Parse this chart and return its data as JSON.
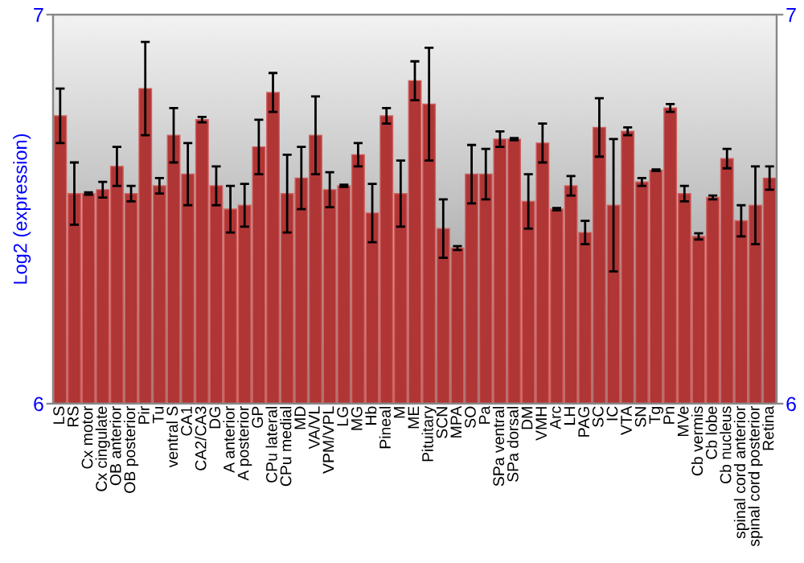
{
  "chart_data": {
    "type": "bar",
    "ylabel": "Log2 (expression)",
    "categories": [
      "LS",
      "RS",
      "Cx motor",
      "Cx cingulate",
      "OB anterior",
      "OB posterior",
      "Pir",
      "Tu",
      "ventral S",
      "CA1",
      "CA2/CA3",
      "DG",
      "A anterior",
      "A posterior",
      "GP",
      "CPu lateral",
      "CPu medial",
      "MD",
      "VA/VL",
      "VPM/VPL",
      "LG",
      "MG",
      "Hb",
      "Pineal",
      "M",
      "ME",
      "Pituitary",
      "SCN",
      "MPA",
      "SO",
      "Pa",
      "SPa ventral",
      "SPa dorsal",
      "DM",
      "VMH",
      "Arc",
      "LH",
      "PAG",
      "SC",
      "IC",
      "VTA",
      "SN",
      "Tg",
      "Pn",
      "MVe",
      "Cb vermis",
      "Cb lobe",
      "Cb nucleus",
      "spinal cord anterior",
      "spinal cord posterior",
      "Retina"
    ],
    "values": [
      6.74,
      6.54,
      6.54,
      6.55,
      6.61,
      6.54,
      6.81,
      6.56,
      6.69,
      6.59,
      6.73,
      6.56,
      6.5,
      6.51,
      6.66,
      6.8,
      6.54,
      6.58,
      6.69,
      6.55,
      6.56,
      6.64,
      6.49,
      6.74,
      6.54,
      6.83,
      6.77,
      6.45,
      6.4,
      6.59,
      6.59,
      6.68,
      6.68,
      6.52,
      6.67,
      6.5,
      6.56,
      6.44,
      6.71,
      6.51,
      6.7,
      6.57,
      6.6,
      6.76,
      6.54,
      6.43,
      6.53,
      6.63,
      6.47,
      6.51,
      6.58
    ],
    "errors": [
      0.07,
      0.08,
      0.003,
      0.02,
      0.05,
      0.02,
      0.12,
      0.02,
      0.07,
      0.08,
      0.007,
      0.05,
      0.06,
      0.055,
      0.07,
      0.05,
      0.1,
      0.08,
      0.1,
      0.045,
      0.003,
      0.03,
      0.075,
      0.02,
      0.085,
      0.05,
      0.145,
      0.075,
      0.005,
      0.075,
      0.065,
      0.02,
      0.003,
      0.07,
      0.05,
      0.003,
      0.025,
      0.03,
      0.075,
      0.17,
      0.01,
      0.01,
      0.002,
      0.01,
      0.02,
      0.008,
      0.005,
      0.025,
      0.04,
      0.1,
      0.03
    ],
    "color": "#b03535",
    "ylim": [
      6,
      7
    ],
    "yticks": [
      6,
      7
    ],
    "y2lim": [
      6,
      7
    ],
    "y2ticks": [
      6,
      7
    ]
  }
}
